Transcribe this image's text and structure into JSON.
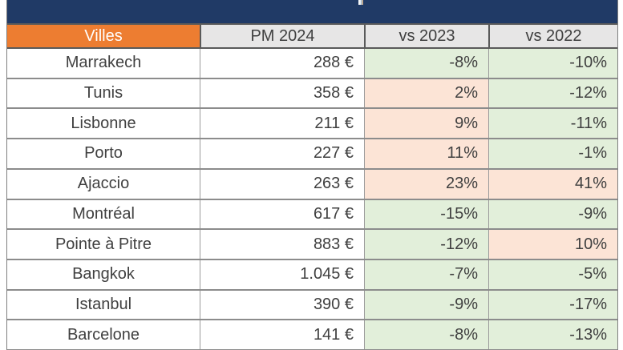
{
  "table": {
    "columns": [
      "Villes",
      "PM 2024",
      "vs 2023",
      "vs 2022"
    ],
    "rows": [
      {
        "city": "Marrakech",
        "pm_2024": "288 €",
        "vs_2023": "-8%",
        "vs_2022": "-10%"
      },
      {
        "city": "Tunis",
        "pm_2024": "358 €",
        "vs_2023": "2%",
        "vs_2022": "-12%"
      },
      {
        "city": "Lisbonne",
        "pm_2024": "211 €",
        "vs_2023": "9%",
        "vs_2022": "-11%"
      },
      {
        "city": "Porto",
        "pm_2024": "227 €",
        "vs_2023": "11%",
        "vs_2022": "-1%"
      },
      {
        "city": "Ajaccio",
        "pm_2024": "263 €",
        "vs_2023": "23%",
        "vs_2022": "41%"
      },
      {
        "city": "Montréal",
        "pm_2024": "617 €",
        "vs_2023": "-15%",
        "vs_2022": "-9%"
      },
      {
        "city": "Pointe à Pitre",
        "pm_2024": "883 €",
        "vs_2023": "-12%",
        "vs_2022": "10%"
      },
      {
        "city": "Bangkok",
        "pm_2024": "1.045 €",
        "vs_2023": "-7%",
        "vs_2022": "-5%"
      },
      {
        "city": "Istanbul",
        "pm_2024": "390 €",
        "vs_2023": "-9%",
        "vs_2022": "-17%"
      },
      {
        "city": "Barcelone",
        "pm_2024": "141 €",
        "vs_2023": "-8%",
        "vs_2022": "-13%"
      }
    ],
    "colors": {
      "banner_bg": "#203A66",
      "villes_header_bg": "#ED7D31",
      "villes_header_text": "#FFFFFF",
      "header_bg": "#E7E6E6",
      "text": "#404040",
      "increase_bg": "#FCE4D6",
      "decrease_bg": "#E2EFDA"
    }
  },
  "chart_data": {
    "type": "table",
    "title": "",
    "columns": [
      "Villes",
      "PM 2024",
      "vs 2023",
      "vs 2022"
    ],
    "cities": [
      "Marrakech",
      "Tunis",
      "Lisbonne",
      "Porto",
      "Ajaccio",
      "Montréal",
      "Pointe à Pitre",
      "Bangkok",
      "Istanbul",
      "Barcelone"
    ],
    "series": [
      {
        "name": "PM 2024 (EUR)",
        "values": [
          288,
          358,
          211,
          227,
          263,
          617,
          883,
          1045,
          390,
          141
        ]
      },
      {
        "name": "vs 2023 (%)",
        "values": [
          -8,
          2,
          9,
          11,
          23,
          -15,
          -12,
          -7,
          -9,
          -8
        ]
      },
      {
        "name": "vs 2022 (%)",
        "values": [
          -10,
          -12,
          -11,
          -1,
          41,
          -9,
          10,
          -5,
          -17,
          -13
        ]
      }
    ],
    "conditional_formatting": "negative % = light green fill, positive % = light peach fill"
  }
}
